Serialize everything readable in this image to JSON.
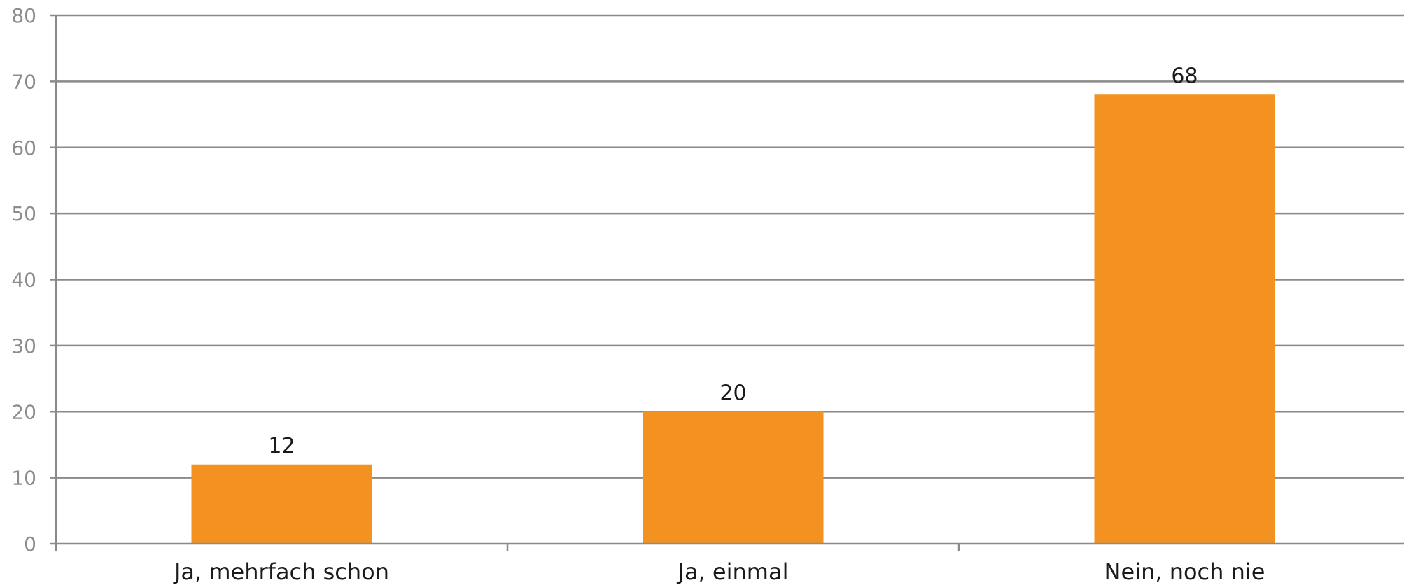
{
  "chart_data": {
    "type": "bar",
    "categories": [
      "Ja, mehrfach schon",
      "Ja, einmal",
      "Nein, noch nie"
    ],
    "values": [
      12,
      20,
      68
    ],
    "data_labels": [
      "12",
      "20",
      "68"
    ],
    "title": "",
    "xlabel": "",
    "ylabel": "",
    "ylim": [
      0,
      80
    ],
    "yticks": [
      0,
      10,
      20,
      30,
      40,
      50,
      60,
      70,
      80
    ],
    "grid": true,
    "legend": "none",
    "bar_color": "#F39221"
  }
}
